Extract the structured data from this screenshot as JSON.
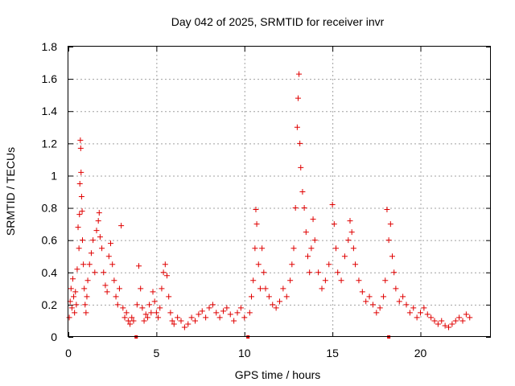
{
  "chart_data": {
    "type": "scatter",
    "title": "Day 042 of 2025, SRMTID for receiver invr",
    "xlabel": "GPS time / hours",
    "ylabel": "SRMTID / TECUs",
    "xlim": [
      0,
      24
    ],
    "ylim": [
      0,
      1.8
    ],
    "x_ticks": [
      0,
      5,
      10,
      15,
      20
    ],
    "x_tick_labels": [
      "0",
      "5",
      "10",
      "15",
      "20"
    ],
    "y_ticks": [
      0,
      0.2,
      0.4,
      0.6,
      0.8,
      1.0,
      1.2,
      1.4,
      1.6,
      1.8
    ],
    "y_tick_labels": [
      "0",
      "0.2",
      "0.4",
      "0.6",
      "0.8",
      "1",
      "1.2",
      "1.4",
      "1.6",
      "1.8"
    ],
    "grid": true,
    "marker": "+",
    "color": "#e00000",
    "gap_markers_x": [
      3.85,
      10.2,
      18.2
    ],
    "series": [
      {
        "name": "SRMTID",
        "points": [
          [
            0.05,
            0.12
          ],
          [
            0.1,
            0.22
          ],
          [
            0.15,
            0.3
          ],
          [
            0.2,
            0.18
          ],
          [
            0.25,
            0.36
          ],
          [
            0.3,
            0.25
          ],
          [
            0.35,
            0.15
          ],
          [
            0.4,
            0.28
          ],
          [
            0.45,
            0.2
          ],
          [
            0.5,
            0.42
          ],
          [
            0.55,
            0.68
          ],
          [
            0.6,
            0.55
          ],
          [
            0.63,
            0.76
          ],
          [
            0.65,
            0.95
          ],
          [
            0.68,
            1.22
          ],
          [
            0.7,
            1.17
          ],
          [
            0.72,
            1.02
          ],
          [
            0.75,
            0.87
          ],
          [
            0.78,
            0.78
          ],
          [
            0.8,
            0.6
          ],
          [
            0.85,
            0.45
          ],
          [
            0.9,
            0.3
          ],
          [
            0.95,
            0.2
          ],
          [
            1.0,
            0.15
          ],
          [
            1.05,
            0.25
          ],
          [
            1.1,
            0.35
          ],
          [
            1.2,
            0.45
          ],
          [
            1.3,
            0.52
          ],
          [
            1.4,
            0.6
          ],
          [
            1.5,
            0.4
          ],
          [
            1.6,
            0.66
          ],
          [
            1.7,
            0.72
          ],
          [
            1.75,
            0.77
          ],
          [
            1.8,
            0.62
          ],
          [
            1.9,
            0.55
          ],
          [
            2.0,
            0.4
          ],
          [
            2.1,
            0.32
          ],
          [
            2.2,
            0.28
          ],
          [
            2.3,
            0.5
          ],
          [
            2.4,
            0.58
          ],
          [
            2.5,
            0.45
          ],
          [
            2.6,
            0.35
          ],
          [
            2.7,
            0.25
          ],
          [
            2.8,
            0.2
          ],
          [
            2.9,
            0.3
          ],
          [
            3.0,
            0.69
          ],
          [
            3.1,
            0.18
          ],
          [
            3.2,
            0.12
          ],
          [
            3.3,
            0.15
          ],
          [
            3.4,
            0.1
          ],
          [
            3.5,
            0.08
          ],
          [
            3.6,
            0.12
          ],
          [
            3.7,
            0.1
          ],
          [
            3.9,
            0.2
          ],
          [
            4.0,
            0.44
          ],
          [
            4.1,
            0.3
          ],
          [
            4.2,
            0.18
          ],
          [
            4.3,
            0.1
          ],
          [
            4.4,
            0.14
          ],
          [
            4.5,
            0.12
          ],
          [
            4.6,
            0.2
          ],
          [
            4.7,
            0.15
          ],
          [
            4.8,
            0.28
          ],
          [
            4.9,
            0.22
          ],
          [
            5.0,
            0.15
          ],
          [
            5.1,
            0.12
          ],
          [
            5.2,
            0.18
          ],
          [
            5.3,
            0.3
          ],
          [
            5.4,
            0.4
          ],
          [
            5.5,
            0.45
          ],
          [
            5.6,
            0.38
          ],
          [
            5.7,
            0.25
          ],
          [
            5.8,
            0.15
          ],
          [
            5.9,
            0.1
          ],
          [
            6.0,
            0.08
          ],
          [
            6.2,
            0.12
          ],
          [
            6.4,
            0.1
          ],
          [
            6.6,
            0.06
          ],
          [
            6.8,
            0.08
          ],
          [
            7.0,
            0.12
          ],
          [
            7.2,
            0.1
          ],
          [
            7.4,
            0.14
          ],
          [
            7.6,
            0.16
          ],
          [
            7.8,
            0.12
          ],
          [
            8.0,
            0.18
          ],
          [
            8.2,
            0.2
          ],
          [
            8.4,
            0.15
          ],
          [
            8.6,
            0.12
          ],
          [
            8.8,
            0.16
          ],
          [
            9.0,
            0.18
          ],
          [
            9.2,
            0.14
          ],
          [
            9.4,
            0.1
          ],
          [
            9.6,
            0.15
          ],
          [
            9.8,
            0.18
          ],
          [
            10.0,
            0.12
          ],
          [
            10.3,
            0.15
          ],
          [
            10.4,
            0.25
          ],
          [
            10.5,
            0.35
          ],
          [
            10.6,
            0.55
          ],
          [
            10.65,
            0.79
          ],
          [
            10.7,
            0.7
          ],
          [
            10.8,
            0.45
          ],
          [
            10.9,
            0.3
          ],
          [
            11.0,
            0.55
          ],
          [
            11.1,
            0.4
          ],
          [
            11.2,
            0.3
          ],
          [
            11.4,
            0.25
          ],
          [
            11.6,
            0.2
          ],
          [
            11.8,
            0.18
          ],
          [
            12.0,
            0.22
          ],
          [
            12.2,
            0.3
          ],
          [
            12.4,
            0.25
          ],
          [
            12.6,
            0.35
          ],
          [
            12.7,
            0.45
          ],
          [
            12.8,
            0.55
          ],
          [
            12.9,
            0.8
          ],
          [
            13.0,
            1.3
          ],
          [
            13.05,
            1.48
          ],
          [
            13.1,
            1.63
          ],
          [
            13.15,
            1.2
          ],
          [
            13.2,
            1.05
          ],
          [
            13.3,
            0.9
          ],
          [
            13.4,
            0.8
          ],
          [
            13.5,
            0.65
          ],
          [
            13.6,
            0.5
          ],
          [
            13.7,
            0.4
          ],
          [
            13.8,
            0.55
          ],
          [
            13.9,
            0.73
          ],
          [
            14.0,
            0.6
          ],
          [
            14.2,
            0.4
          ],
          [
            14.4,
            0.3
          ],
          [
            14.6,
            0.35
          ],
          [
            14.8,
            0.45
          ],
          [
            15.0,
            0.82
          ],
          [
            15.1,
            0.7
          ],
          [
            15.2,
            0.55
          ],
          [
            15.3,
            0.4
          ],
          [
            15.5,
            0.35
          ],
          [
            15.7,
            0.5
          ],
          [
            15.9,
            0.6
          ],
          [
            16.0,
            0.72
          ],
          [
            16.1,
            0.65
          ],
          [
            16.2,
            0.55
          ],
          [
            16.3,
            0.45
          ],
          [
            16.5,
            0.35
          ],
          [
            16.7,
            0.28
          ],
          [
            16.9,
            0.22
          ],
          [
            17.1,
            0.25
          ],
          [
            17.3,
            0.2
          ],
          [
            17.5,
            0.15
          ],
          [
            17.7,
            0.18
          ],
          [
            17.9,
            0.25
          ],
          [
            18.0,
            0.35
          ],
          [
            18.1,
            0.79
          ],
          [
            18.2,
            0.6
          ],
          [
            18.3,
            0.7
          ],
          [
            18.4,
            0.5
          ],
          [
            18.5,
            0.4
          ],
          [
            18.6,
            0.3
          ],
          [
            18.8,
            0.22
          ],
          [
            19.0,
            0.25
          ],
          [
            19.2,
            0.2
          ],
          [
            19.4,
            0.15
          ],
          [
            19.6,
            0.18
          ],
          [
            19.8,
            0.12
          ],
          [
            20.0,
            0.15
          ],
          [
            20.2,
            0.18
          ],
          [
            20.4,
            0.14
          ],
          [
            20.6,
            0.12
          ],
          [
            20.8,
            0.1
          ],
          [
            21.0,
            0.08
          ],
          [
            21.2,
            0.1
          ],
          [
            21.4,
            0.07
          ],
          [
            21.6,
            0.06
          ],
          [
            21.8,
            0.08
          ],
          [
            22.0,
            0.1
          ],
          [
            22.2,
            0.12
          ],
          [
            22.4,
            0.1
          ],
          [
            22.6,
            0.14
          ],
          [
            22.8,
            0.12
          ]
        ]
      }
    ]
  }
}
